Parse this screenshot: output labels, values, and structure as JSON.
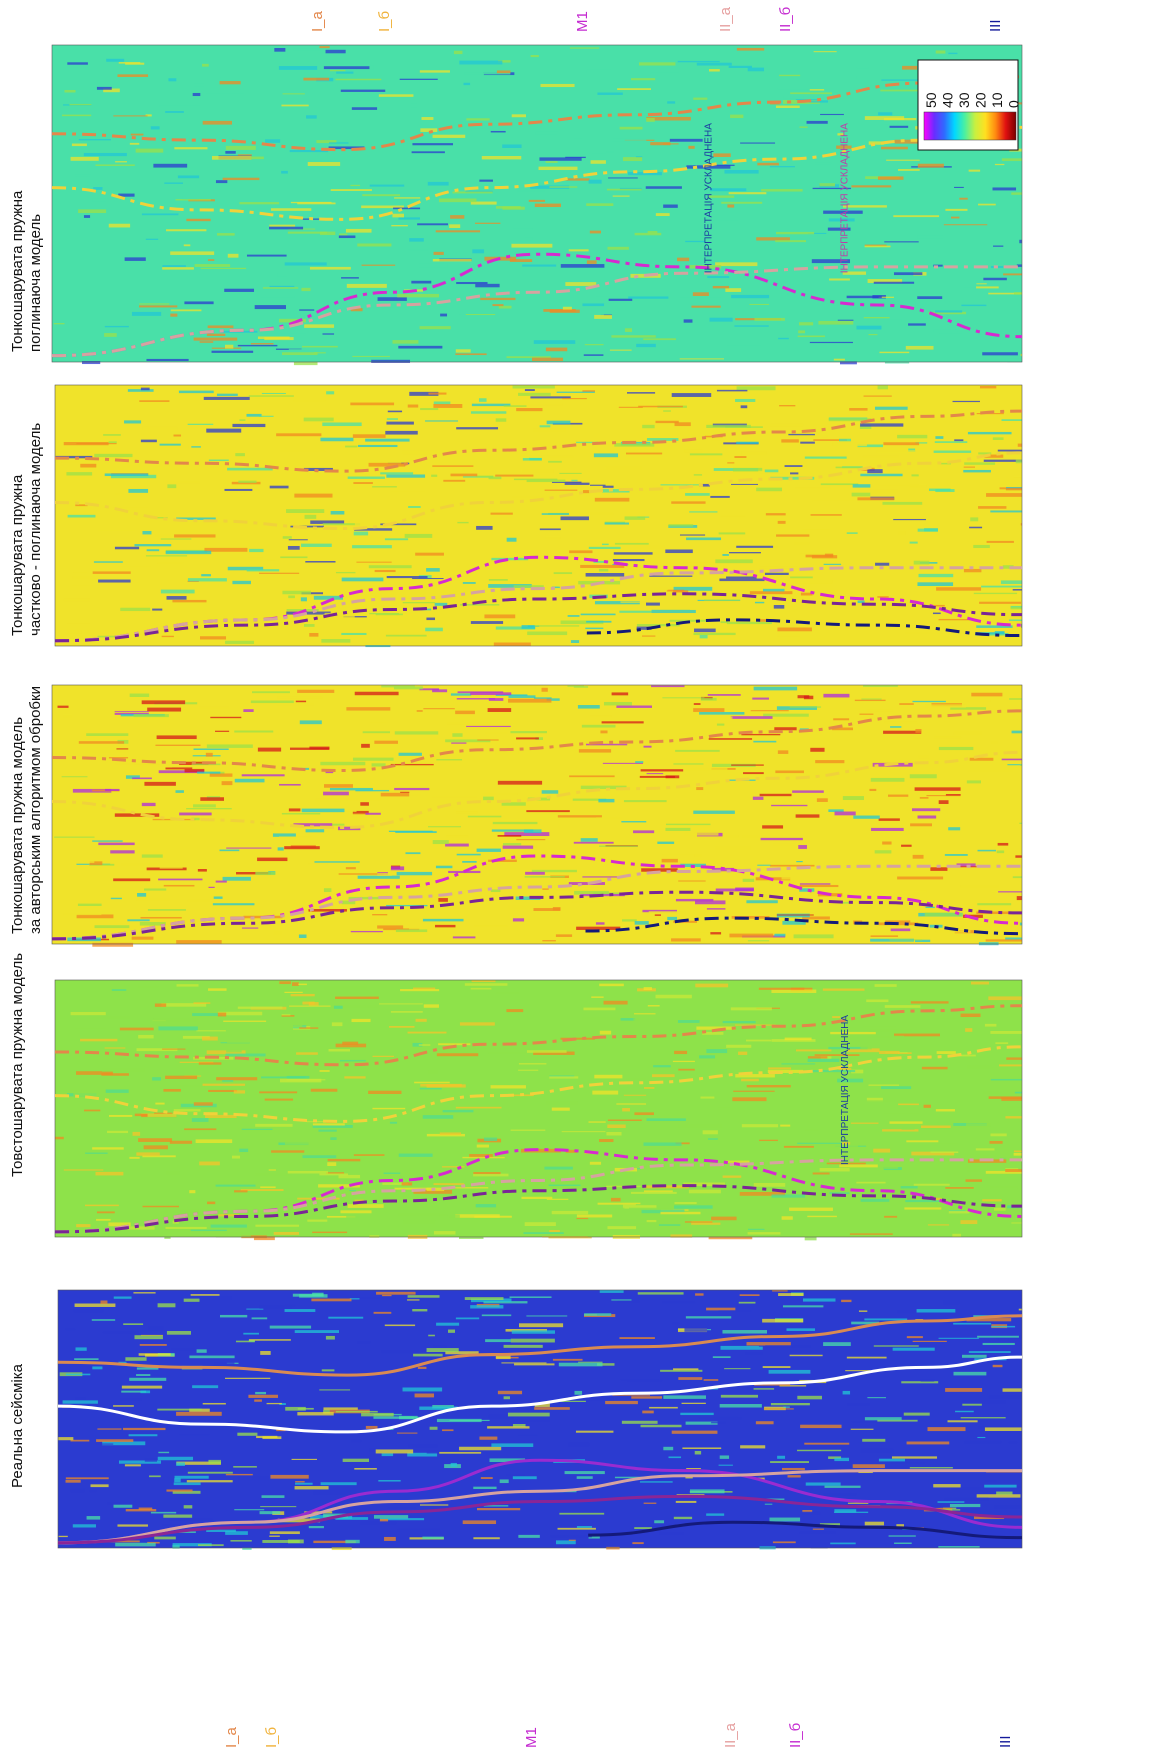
{
  "figure": {
    "panels": [
      {
        "id": "real",
        "title": [
          "Реальна сейсміка"
        ],
        "palette": [
          "#2b3bd0",
          "#21c7d6",
          "#49e0a8",
          "#9be24a",
          "#f0e32a",
          "#f28a22"
        ],
        "horizons": [
          {
            "label": "I_а",
            "color": "#d98a52",
            "style": "solid"
          },
          {
            "label": "I_б",
            "color": "#ffffff",
            "style": "solid"
          },
          {
            "label": "M1",
            "color": "#9a2bd0",
            "style": "solid"
          },
          {
            "label": "II_а",
            "color": "#d6a3a0",
            "style": "solid"
          },
          {
            "label": "II_б",
            "color": "#8a2596",
            "style": "solid"
          },
          {
            "label": "III",
            "color": "#141a7a",
            "style": "solid"
          }
        ],
        "notes": []
      },
      {
        "id": "thick",
        "title": [
          "Товстошарувата пружна модель"
        ],
        "palette": [
          "#8ee24a",
          "#c8e838",
          "#f0e32a",
          "#f5c42a",
          "#4fdc90",
          "#f28a22"
        ],
        "horizons": [
          {
            "label": "",
            "color": "#e3874a",
            "style": "dashed"
          },
          {
            "label": "",
            "color": "#f0d23a",
            "style": "dashed"
          },
          {
            "label": "",
            "color": "#d62ad0",
            "style": "dashed"
          },
          {
            "label": "",
            "color": "#d6a3a0",
            "style": "dashed"
          },
          {
            "label": "",
            "color": "#7a2596",
            "style": "dashed"
          }
        ],
        "notes": [
          "ІНТЕРПРЕТАЦІЯ УСКЛАДНЕНА"
        ]
      },
      {
        "id": "thin-author",
        "title": [
          "Тонкошарувата пружна модель",
          "за авторським алгоритмом обробки"
        ],
        "palette": [
          "#f0e32a",
          "#21c7d6",
          "#b02ae0",
          "#9be24a",
          "#f28a22",
          "#d61a1a"
        ],
        "horizons": [
          {
            "label": "",
            "color": "#e3874a",
            "style": "dashed"
          },
          {
            "label": "",
            "color": "#f0d23a",
            "style": "dashed"
          },
          {
            "label": "",
            "color": "#d62ad0",
            "style": "dashed"
          },
          {
            "label": "",
            "color": "#d6a3a0",
            "style": "dashed"
          },
          {
            "label": "",
            "color": "#7a2596",
            "style": "dashed"
          },
          {
            "label": "",
            "color": "#141a7a",
            "style": "dashed"
          }
        ],
        "notes": []
      },
      {
        "id": "thin-partial",
        "title": [
          "Тонкошарувата пружна",
          "частково - поглинаюча модель"
        ],
        "palette": [
          "#f0e32a",
          "#21c7d6",
          "#2b3bd0",
          "#9be24a",
          "#f28a22",
          "#49e0a8"
        ],
        "horizons": [
          {
            "label": "",
            "color": "#e3874a",
            "style": "dashed"
          },
          {
            "label": "",
            "color": "#f0d23a",
            "style": "dashed"
          },
          {
            "label": "",
            "color": "#d62ad0",
            "style": "dashed"
          },
          {
            "label": "",
            "color": "#d6a3a0",
            "style": "dashed"
          },
          {
            "label": "",
            "color": "#7a2596",
            "style": "dashed"
          },
          {
            "label": "",
            "color": "#141a7a",
            "style": "dashed"
          }
        ],
        "notes": []
      },
      {
        "id": "thin-absorb",
        "title": [
          "Тонкошарувата пружна",
          "поглинаюча модель"
        ],
        "palette": [
          "#49e0a8",
          "#21c7d6",
          "#f0e32a",
          "#9be24a",
          "#2b3bd0",
          "#f28a22"
        ],
        "horizons": [
          {
            "label": "",
            "color": "#e3874a",
            "style": "dashed"
          },
          {
            "label": "",
            "color": "#f0d23a",
            "style": "dashed"
          },
          {
            "label": "",
            "color": "#d62ad0",
            "style": "dashed"
          },
          {
            "label": "",
            "color": "#d6a3a0",
            "style": "dashed"
          }
        ],
        "notes": [
          "ІНТЕРПРЕТАЦІЯ УСКЛАДНЕНА",
          "ІНТЕРПРЕТАЦІЯ УСКЛАДНЕНА"
        ]
      }
    ],
    "left_labels": [
      {
        "text": "I_а",
        "color": "#e3874a"
      },
      {
        "text": "I_б",
        "color": "#f0b23a"
      },
      {
        "text": "M1",
        "color": "#c42ad0"
      },
      {
        "text": "II_а",
        "color": "#e6a0a0"
      },
      {
        "text": "II_б",
        "color": "#c42ad0"
      },
      {
        "text": "III",
        "color": "#141a9a"
      }
    ],
    "right_labels": [
      {
        "text": "I_а",
        "color": "#e3874a"
      },
      {
        "text": "I_б",
        "color": "#f0b23a"
      },
      {
        "text": "M1",
        "color": "#c42ad0"
      },
      {
        "text": "II_а",
        "color": "#e6a0a0"
      },
      {
        "text": "II_б",
        "color": "#c42ad0"
      },
      {
        "text": "III",
        "color": "#141a9a"
      }
    ],
    "colorbar": {
      "ticks": [
        "50",
        "40",
        "30",
        "20",
        "10",
        "0"
      ],
      "colors": [
        "#ff00ff",
        "#6a2cff",
        "#2f6bff",
        "#00d8ff",
        "#4cf0a0",
        "#c8f040",
        "#ffe020",
        "#ff8a10",
        "#e01010",
        "#7a0000"
      ]
    }
  }
}
